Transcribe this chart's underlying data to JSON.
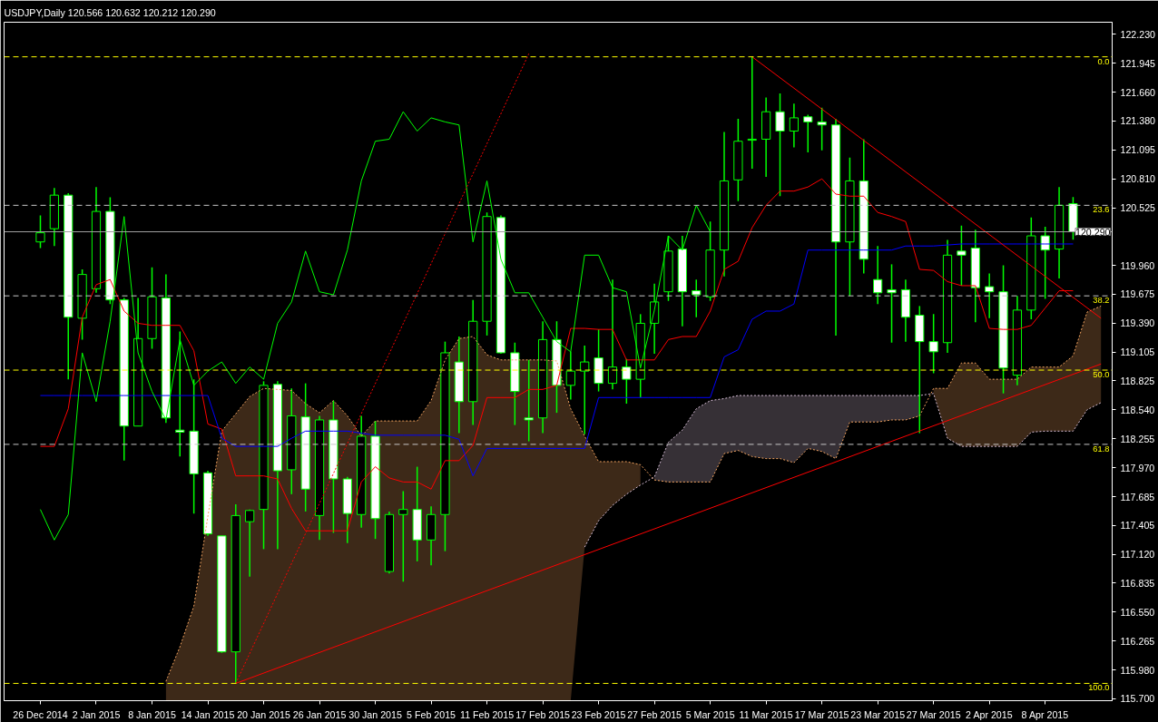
{
  "chart_data": {
    "type": "candlestick",
    "title": "USDJPY,Daily  120.566 120.632 120.212 120.290",
    "categories": [
      "26 Dec 2014",
      null,
      null,
      null,
      "2 Jan 2015",
      null,
      null,
      null,
      "8 Jan 2015",
      null,
      null,
      null,
      "14 Jan 2015",
      null,
      null,
      null,
      "20 Jan 2015",
      null,
      null,
      null,
      "26 Jan 2015",
      null,
      null,
      null,
      "30 Jan 2015",
      null,
      null,
      null,
      "5 Feb 2015",
      null,
      null,
      null,
      "11 Feb 2015",
      null,
      null,
      null,
      "17 Feb 2015",
      null,
      null,
      null,
      "23 Feb 2015",
      null,
      null,
      null,
      "27 Feb 2015",
      null,
      null,
      null,
      "5 Mar 2015",
      null,
      null,
      null,
      "11 Mar 2015",
      null,
      null,
      null,
      "17 Mar 2015",
      null,
      null,
      null,
      "23 Mar 2015",
      null,
      null,
      null,
      "27 Mar 2015",
      null,
      null,
      null,
      "2 Apr 2015",
      null,
      null,
      null,
      "8 Apr 2015",
      null,
      null,
      null,
      null
    ],
    "color": "#00ff00",
    "colors": [
      "#000000",
      "#000000",
      "#ffffff",
      "#000000",
      "#000000",
      "#ffffff",
      "#ffffff",
      "#000000",
      "#000000",
      "#ffffff",
      "#ffffff",
      "#ffffff",
      "#ffffff",
      "#ffffff",
      "#000000",
      "#000000",
      "#000000",
      "#ffffff",
      "#000000",
      "#ffffff",
      "#000000",
      "#ffffff",
      "#ffffff",
      "#000000",
      "#ffffff",
      "#000000",
      "#000000",
      "#ffffff",
      "#000000",
      "#000000",
      "#ffffff",
      "#000000",
      "#000000",
      "#ffffff",
      "#ffffff",
      "#ffffff",
      "#000000",
      "#ffffff",
      "#000000",
      "#000000",
      "#ffffff",
      "#000000",
      "#ffffff",
      "#000000",
      "#000000",
      "#000000",
      "#ffffff",
      "#ffffff",
      "#000000",
      "#000000",
      "#000000",
      "#000000",
      "#000000",
      "#ffffff",
      "#000000",
      "#ffffff",
      "#ffffff",
      "#ffffff",
      "#000000",
      "#ffffff",
      "#ffffff",
      "#ffffff",
      "#ffffff",
      "#ffffff",
      "#ffffff",
      "#000000",
      "#ffffff",
      "#ffffff",
      "#ffffff",
      "#ffffff",
      "#000000",
      "#000000",
      "#ffffff",
      "#000000",
      "#ffffff",
      null,
      null
    ],
    "ohlc": [
      [
        120.19,
        120.45,
        120.13,
        120.28
      ],
      [
        120.32,
        120.72,
        120.15,
        120.65
      ],
      [
        120.65,
        120.67,
        118.84,
        119.45
      ],
      [
        119.44,
        119.92,
        119.23,
        119.87
      ],
      [
        119.73,
        120.73,
        119.69,
        120.49
      ],
      [
        120.49,
        120.63,
        119.58,
        119.62
      ],
      [
        119.62,
        119.64,
        118.04,
        118.38
      ],
      [
        118.38,
        119.64,
        118.38,
        119.24
      ],
      [
        119.24,
        119.94,
        119.14,
        119.65
      ],
      [
        119.64,
        119.87,
        118.41,
        118.46
      ],
      [
        118.34,
        119.31,
        118.08,
        118.32
      ],
      [
        118.33,
        118.84,
        117.52,
        117.91
      ],
      [
        117.92,
        117.94,
        117.3,
        117.32
      ],
      [
        117.3,
        117.3,
        116.15,
        116.16
      ],
      [
        116.16,
        117.61,
        115.85,
        117.5
      ],
      [
        117.44,
        117.56,
        116.9,
        117.55
      ],
      [
        117.56,
        118.82,
        117.17,
        118.78
      ],
      [
        118.79,
        118.82,
        117.17,
        117.94
      ],
      [
        117.95,
        118.75,
        117.71,
        118.48
      ],
      [
        118.47,
        118.8,
        117.54,
        117.76
      ],
      [
        117.5,
        118.48,
        117.26,
        118.44
      ],
      [
        118.44,
        118.63,
        117.33,
        117.86
      ],
      [
        117.86,
        117.88,
        117.23,
        117.52
      ],
      [
        117.51,
        118.48,
        117.38,
        118.28
      ],
      [
        118.28,
        118.43,
        117.27,
        117.47
      ],
      [
        116.95,
        117.54,
        116.93,
        117.51
      ],
      [
        117.51,
        117.74,
        116.85,
        117.56
      ],
      [
        117.56,
        117.98,
        117.05,
        117.26
      ],
      [
        117.26,
        117.59,
        117.01,
        117.51
      ],
      [
        117.51,
        119.21,
        117.15,
        119.1
      ],
      [
        119.01,
        119.26,
        118.31,
        118.62
      ],
      [
        118.62,
        119.62,
        118.39,
        119.41
      ],
      [
        119.41,
        120.48,
        119.27,
        120.44
      ],
      [
        120.43,
        120.45,
        119.09,
        119.1
      ],
      [
        119.1,
        119.2,
        118.39,
        118.72
      ],
      [
        118.46,
        119.03,
        118.23,
        118.44
      ],
      [
        118.46,
        119.41,
        118.31,
        119.23
      ],
      [
        119.23,
        119.41,
        118.51,
        118.78
      ],
      [
        118.78,
        119.11,
        118.64,
        118.92
      ],
      [
        118.92,
        119.17,
        118.3,
        119.01
      ],
      [
        119.05,
        119.33,
        118.72,
        118.8
      ],
      [
        118.8,
        119.82,
        118.74,
        118.96
      ],
      [
        118.96,
        119.04,
        118.6,
        118.84
      ],
      [
        118.84,
        119.48,
        118.66,
        119.39
      ],
      [
        119.39,
        119.78,
        119.09,
        119.6
      ],
      [
        119.7,
        120.25,
        119.61,
        120.1
      ],
      [
        120.12,
        120.25,
        119.36,
        119.7
      ],
      [
        119.71,
        119.82,
        119.45,
        119.67
      ],
      [
        119.65,
        120.39,
        119.61,
        120.11
      ],
      [
        120.11,
        121.27,
        119.85,
        120.79
      ],
      [
        120.8,
        121.4,
        120.59,
        121.18
      ],
      [
        121.19,
        122.01,
        120.91,
        121.2
      ],
      [
        121.2,
        121.61,
        120.83,
        121.47
      ],
      [
        121.47,
        121.65,
        120.64,
        121.28
      ],
      [
        121.28,
        121.55,
        121.12,
        121.41
      ],
      [
        121.42,
        121.44,
        121.07,
        121.37
      ],
      [
        121.37,
        121.51,
        121.09,
        121.34
      ],
      [
        121.34,
        121.4,
        119.27,
        120.19
      ],
      [
        120.19,
        121.02,
        119.66,
        120.79
      ],
      [
        120.79,
        121.2,
        119.88,
        120.02
      ],
      [
        119.82,
        120.15,
        119.58,
        119.69
      ],
      [
        119.72,
        119.97,
        119.2,
        119.69
      ],
      [
        119.72,
        119.82,
        119.21,
        119.45
      ],
      [
        119.47,
        119.56,
        118.31,
        119.21
      ],
      [
        119.21,
        119.48,
        118.9,
        119.11
      ],
      [
        119.2,
        120.21,
        119.1,
        120.06
      ],
      [
        120.1,
        120.35,
        119.76,
        120.06
      ],
      [
        120.13,
        120.31,
        119.4,
        119.74
      ],
      [
        119.75,
        119.88,
        119.44,
        119.7
      ],
      [
        119.7,
        119.96,
        118.7,
        118.95
      ],
      [
        118.88,
        119.66,
        118.78,
        119.52
      ],
      [
        119.52,
        120.43,
        119.43,
        120.25
      ],
      [
        120.25,
        120.34,
        119.63,
        120.11
      ],
      [
        120.12,
        120.73,
        119.83,
        120.55
      ],
      [
        120.566,
        120.632,
        120.212,
        120.29
      ],
      null,
      null
    ],
    "series": [
      {
        "type": "line",
        "color": "#f4a460",
        "line_style": "dotted",
        "values": [
          null,
          null,
          null,
          null,
          null,
          null,
          null,
          null,
          null,
          115.87,
          116.21,
          116.61,
          117.49,
          118.33,
          118.5,
          118.67,
          118.75,
          118.74,
          118.73,
          118.6,
          118.51,
          118.63,
          118.48,
          118.28,
          118.43,
          118.43,
          118.43,
          118.43,
          118.63,
          119.03,
          119.24,
          119.26,
          119.08,
          119.03,
          119.03,
          119.03,
          119.03,
          119.02,
          118.55,
          118.28,
          118.03,
          118.03,
          118.03,
          118.0,
          117.85,
          117.83,
          117.83,
          117.83,
          117.83,
          118.11,
          118.14,
          118.08,
          118.06,
          118.06,
          118.02,
          118.16,
          118.13,
          118.06,
          118.42,
          118.42,
          118.42,
          118.44,
          118.44,
          118.48,
          118.75,
          118.75,
          119.0,
          119.0,
          118.84,
          118.84,
          118.84,
          118.96,
          118.96,
          118.96,
          119.07,
          119.5,
          119.56
        ],
        "upper": [
          null,
          null,
          null,
          null,
          null,
          null,
          null,
          null,
          null,
          115.87,
          116.21,
          116.61,
          117.49,
          118.33,
          118.5,
          118.67,
          118.75,
          118.74,
          118.73,
          118.6,
          118.51,
          118.63,
          118.48,
          118.28,
          118.43,
          118.43,
          118.43,
          118.43,
          118.63,
          119.03,
          119.24,
          119.26,
          119.08,
          119.03,
          119.03,
          119.03,
          119.03,
          119.02,
          118.55,
          118.28,
          118.03,
          118.03,
          118.03,
          118.0,
          null,
          null,
          null,
          null,
          null,
          null,
          null,
          null,
          null,
          null,
          null,
          null,
          null,
          null,
          null,
          null,
          null,
          null,
          null,
          null,
          118.75,
          118.75,
          119.0,
          119.0,
          118.84,
          118.84,
          118.84,
          118.96,
          118.96,
          118.96,
          119.07,
          119.5,
          119.56
        ],
        "lower": [
          null,
          null,
          null,
          null,
          null,
          null,
          null,
          null,
          null,
          115.68,
          115.68,
          115.68,
          115.68,
          115.68,
          115.68,
          115.68,
          115.68,
          115.68,
          115.68,
          115.68,
          115.68,
          115.68,
          115.68,
          115.68,
          115.68,
          115.68,
          115.68,
          115.68,
          115.68,
          115.68,
          115.68,
          115.68,
          115.68,
          115.68,
          115.68,
          115.68,
          115.68,
          115.68,
          115.68,
          117.19,
          117.45,
          117.6,
          117.71,
          117.8,
          null,
          null,
          null,
          null,
          null,
          null,
          null,
          null,
          null,
          null,
          null,
          null,
          null,
          null,
          null,
          null,
          null,
          null,
          null,
          null,
          118.7,
          118.26,
          118.18,
          118.18,
          118.18,
          118.18,
          118.18,
          118.32,
          118.33,
          118.33,
          118.33,
          118.54,
          118.61
        ]
      },
      {
        "type": "line",
        "color": "#d8bfd8",
        "line_style": "dotted",
        "values": [
          null,
          null,
          null,
          null,
          null,
          null,
          null,
          null,
          null,
          null,
          null,
          null,
          null,
          null,
          null,
          null,
          null,
          null,
          null,
          null,
          null,
          null,
          null,
          null,
          null,
          null,
          null,
          null,
          null,
          null,
          null,
          null,
          null,
          null,
          null,
          null,
          null,
          null,
          null,
          117.19,
          117.45,
          117.6,
          117.71,
          117.8,
          117.88,
          118.22,
          118.34,
          118.55,
          118.63,
          118.65,
          118.68,
          118.68,
          118.68,
          118.68,
          118.68,
          118.68,
          118.68,
          118.68,
          118.68,
          118.68,
          118.68,
          118.68,
          118.68,
          118.68,
          118.7,
          118.26,
          118.18,
          118.18,
          118.18,
          118.18,
          118.18,
          118.32,
          118.33,
          118.33,
          118.33,
          118.54,
          118.61
        ],
        "upper": [
          null,
          null,
          null,
          null,
          null,
          null,
          null,
          null,
          null,
          null,
          null,
          null,
          null,
          null,
          null,
          null,
          null,
          null,
          null,
          null,
          null,
          null,
          null,
          null,
          null,
          null,
          null,
          null,
          null,
          null,
          null,
          null,
          null,
          null,
          null,
          null,
          null,
          null,
          null,
          null,
          null,
          null,
          null,
          null,
          117.88,
          118.22,
          118.34,
          118.55,
          118.63,
          118.65,
          118.68,
          118.68,
          118.68,
          118.68,
          118.68,
          118.68,
          118.68,
          118.68,
          118.68,
          118.68,
          118.68,
          118.68,
          118.68,
          118.68,
          null,
          null,
          null,
          null,
          null,
          null,
          null,
          null,
          null,
          null,
          null,
          null,
          null
        ],
        "lower": [
          null,
          null,
          null,
          null,
          null,
          null,
          null,
          null,
          null,
          null,
          null,
          null,
          null,
          null,
          null,
          null,
          null,
          null,
          null,
          null,
          null,
          null,
          null,
          null,
          null,
          null,
          null,
          null,
          null,
          null,
          null,
          null,
          null,
          null,
          null,
          null,
          null,
          null,
          null,
          null,
          null,
          null,
          null,
          null,
          117.85,
          117.83,
          117.83,
          117.83,
          117.83,
          118.11,
          118.14,
          118.08,
          118.06,
          118.06,
          118.02,
          118.16,
          118.13,
          118.06,
          118.42,
          118.42,
          118.42,
          118.44,
          118.44,
          118.48,
          null,
          null,
          null,
          null,
          null,
          null,
          null,
          null,
          null,
          null,
          null,
          null,
          null
        ]
      },
      {
        "type": "line",
        "color": "#ff0000",
        "values": [
          118.18,
          118.18,
          118.55,
          119.45,
          119.77,
          119.82,
          119.51,
          119.39,
          119.37,
          119.37,
          119.37,
          119.12,
          118.4,
          118.35,
          117.89,
          117.89,
          117.89,
          117.86,
          117.57,
          117.35,
          117.35,
          117.35,
          117.35,
          117.83,
          117.98,
          117.87,
          117.83,
          117.83,
          117.76,
          118.04,
          118.04,
          118.19,
          118.66,
          118.66,
          118.66,
          118.74,
          118.74,
          118.78,
          119.34,
          119.34,
          119.33,
          119.33,
          119.03,
          119.03,
          119.03,
          119.23,
          119.26,
          119.26,
          119.51,
          119.92,
          120.0,
          120.33,
          120.55,
          120.69,
          120.69,
          120.73,
          120.81,
          120.66,
          120.64,
          120.64,
          120.48,
          120.44,
          120.39,
          119.92,
          119.91,
          119.8,
          119.76,
          119.76,
          119.34,
          119.33,
          119.33,
          119.37,
          119.54,
          119.71,
          119.71,
          null,
          null
        ]
      },
      {
        "type": "line",
        "color": "#0000ff",
        "values": [
          118.68,
          118.68,
          118.68,
          118.68,
          118.68,
          118.68,
          118.68,
          118.68,
          118.68,
          118.68,
          118.68,
          118.68,
          118.68,
          118.26,
          118.18,
          118.18,
          118.18,
          118.18,
          118.26,
          118.33,
          118.33,
          118.33,
          118.33,
          118.31,
          118.29,
          118.29,
          118.29,
          118.29,
          118.29,
          118.29,
          118.25,
          117.89,
          118.16,
          118.16,
          118.16,
          118.16,
          118.16,
          118.16,
          118.16,
          118.16,
          118.66,
          118.66,
          118.66,
          118.66,
          118.66,
          118.66,
          118.66,
          118.66,
          118.66,
          119.06,
          119.13,
          119.43,
          119.51,
          119.51,
          119.58,
          120.11,
          120.11,
          120.11,
          120.11,
          120.11,
          120.11,
          120.11,
          120.15,
          120.15,
          120.15,
          120.16,
          120.17,
          120.17,
          120.17,
          120.17,
          120.17,
          120.17,
          120.17,
          120.17,
          120.17,
          null,
          null
        ]
      },
      {
        "type": "line",
        "color": "#00ff00",
        "values": [
          117.56,
          117.26,
          117.51,
          119.1,
          118.62,
          119.41,
          120.44,
          119.1,
          118.72,
          118.44,
          119.23,
          118.78,
          118.92,
          119.01,
          118.8,
          118.96,
          118.84,
          119.39,
          119.6,
          120.1,
          119.7,
          119.67,
          120.11,
          120.79,
          121.18,
          121.2,
          121.47,
          121.28,
          121.41,
          121.37,
          121.34,
          120.19,
          120.79,
          120.02,
          119.69,
          119.69,
          119.45,
          119.21,
          119.11,
          120.06,
          120.06,
          119.74,
          119.7,
          118.95,
          119.52,
          120.25,
          120.11,
          120.55,
          120.29,
          null,
          null,
          null,
          null,
          null,
          null,
          null,
          null,
          null,
          null,
          null,
          null,
          null,
          null,
          null,
          null,
          null,
          null,
          null,
          null,
          null,
          null,
          null,
          null,
          null,
          null,
          null,
          null
        ]
      },
      {
        "type": "line",
        "color": "#ff0000",
        "values": [
          null,
          null,
          null,
          null,
          null,
          null,
          null,
          null,
          null,
          null,
          null,
          null,
          null,
          null,
          115.85,
          null,
          null,
          null,
          null,
          null,
          null,
          null,
          null,
          null,
          null,
          null,
          null,
          null,
          null,
          null,
          null,
          null,
          null,
          null,
          null,
          null,
          null,
          null,
          null,
          null,
          null,
          null,
          null,
          null,
          null,
          null,
          null,
          null,
          null,
          null,
          null,
          null,
          null,
          null,
          null,
          null,
          null,
          null,
          null,
          null,
          null,
          null,
          null,
          null,
          null,
          null,
          null,
          null,
          null,
          null,
          null,
          null,
          null,
          null,
          null,
          null,
          118.99
        ]
      },
      {
        "type": "line",
        "color": "#ff0000",
        "values": [
          null,
          null,
          null,
          null,
          null,
          null,
          null,
          null,
          null,
          null,
          null,
          null,
          null,
          null,
          null,
          null,
          null,
          null,
          null,
          null,
          null,
          null,
          null,
          null,
          null,
          null,
          null,
          null,
          null,
          null,
          null,
          null,
          null,
          null,
          null,
          null,
          null,
          null,
          null,
          null,
          null,
          null,
          null,
          null,
          null,
          null,
          null,
          null,
          null,
          null,
          null,
          122.01,
          null,
          null,
          null,
          null,
          null,
          null,
          null,
          null,
          null,
          null,
          null,
          null,
          null,
          null,
          null,
          null,
          null,
          null,
          null,
          null,
          null,
          null,
          null,
          null,
          119.44
        ]
      },
      {
        "type": "line",
        "color": "#ff0000",
        "line_style": "dotted",
        "values": [
          null,
          null,
          null,
          null,
          null,
          null,
          null,
          null,
          null,
          null,
          null,
          null,
          null,
          null,
          115.85,
          null,
          null,
          null,
          null,
          null,
          null,
          null,
          null,
          null,
          null,
          null,
          null,
          null,
          null,
          null,
          null,
          null,
          null,
          null,
          null,
          122.04,
          null,
          null,
          null,
          null,
          null,
          null,
          null,
          null,
          null,
          null,
          null,
          null,
          null,
          null,
          null,
          null,
          null,
          null,
          null,
          null,
          null,
          null,
          null,
          null,
          null,
          null,
          null,
          null,
          null,
          null,
          null,
          null,
          null,
          null,
          null,
          null,
          null,
          null,
          null,
          null,
          null
        ]
      }
    ],
    "ref_lines": [
      {
        "axis": "y",
        "value": 122.01,
        "color": "#ffff00",
        "line_style": "dashed"
      },
      {
        "axis": "y",
        "value": 120.55,
        "color": "#c8c8c8",
        "line_style": "dashed"
      },
      {
        "axis": "y",
        "value": 119.66,
        "color": "#c8c8c8",
        "line_style": "dashed"
      },
      {
        "axis": "y",
        "value": 118.93,
        "color": "#ffff00",
        "line_style": "dashed"
      },
      {
        "axis": "y",
        "value": 118.2,
        "color": "#c8c8c8",
        "line_style": "dashed"
      },
      {
        "axis": "y",
        "value": 115.85,
        "color": "#ffff00",
        "line_style": "dashed"
      },
      {
        "axis": "y",
        "value": 120.29,
        "label": "120.290",
        "color": "#a0a0a0",
        "line_style": "solid"
      }
    ],
    "annotations": [
      {
        "text": "0.0",
        "y": 122.01
      },
      {
        "text": "23.6",
        "y": 120.55
      },
      {
        "text": "38.2",
        "y": 119.66
      },
      {
        "text": "50.0",
        "y": 118.93
      },
      {
        "text": "61.8",
        "y": 118.2
      },
      {
        "text": "100.0",
        "y": 115.85
      }
    ],
    "ylim": [
      115.68,
      122.35
    ],
    "yticks": [
      {
        "value": 122.23,
        "label": "122.230"
      },
      {
        "value": 121.945,
        "label": "121.945"
      },
      {
        "value": 121.66,
        "label": "121.660"
      },
      {
        "value": 121.38,
        "label": "121.380"
      },
      {
        "value": 121.095,
        "label": "121.095"
      },
      {
        "value": 120.81,
        "label": "120.810"
      },
      {
        "value": 120.525,
        "label": "120.525"
      },
      {
        "value": 119.96,
        "label": "119.960"
      },
      {
        "value": 119.675,
        "label": "119.675"
      },
      {
        "value": 119.39,
        "label": "119.390"
      },
      {
        "value": 119.105,
        "label": "119.105"
      },
      {
        "value": 118.825,
        "label": "118.825"
      },
      {
        "value": 118.54,
        "label": "118.540"
      },
      {
        "value": 118.255,
        "label": "118.255"
      },
      {
        "value": 117.97,
        "label": "117.970"
      },
      {
        "value": 117.685,
        "label": "117.685"
      },
      {
        "value": 117.405,
        "label": "117.405"
      },
      {
        "value": 117.12,
        "label": "117.120"
      },
      {
        "value": 116.835,
        "label": "116.835"
      },
      {
        "value": 116.55,
        "label": "116.550"
      },
      {
        "value": 116.265,
        "label": "116.265"
      },
      {
        "value": 115.98,
        "label": "115.980"
      },
      {
        "value": 115.7,
        "label": "115.700"
      }
    ]
  }
}
